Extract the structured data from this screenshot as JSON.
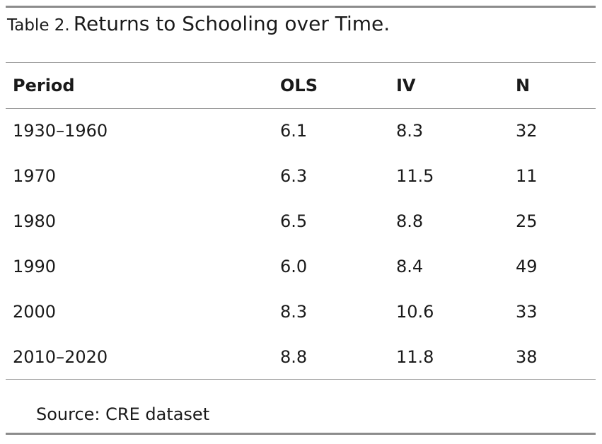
{
  "caption": {
    "label": "Table 2.",
    "title": "Returns to Schooling over Time."
  },
  "table": {
    "headers": [
      "Period",
      "OLS",
      "IV",
      "N"
    ],
    "rows": [
      [
        "1930–1960",
        "6.1",
        "8.3",
        "32"
      ],
      [
        "1970",
        "6.3",
        "11.5",
        "11"
      ],
      [
        "1980",
        "6.5",
        "8.8",
        "25"
      ],
      [
        "1990",
        "6.0",
        "8.4",
        "49"
      ],
      [
        "2000",
        "8.3",
        "10.6",
        "33"
      ],
      [
        "2010–2020",
        "8.8",
        "11.8",
        "38"
      ]
    ]
  },
  "source": "Source: CRE dataset",
  "colors": {
    "rule": "#8c8c8c",
    "text": "#1a1a1a"
  }
}
